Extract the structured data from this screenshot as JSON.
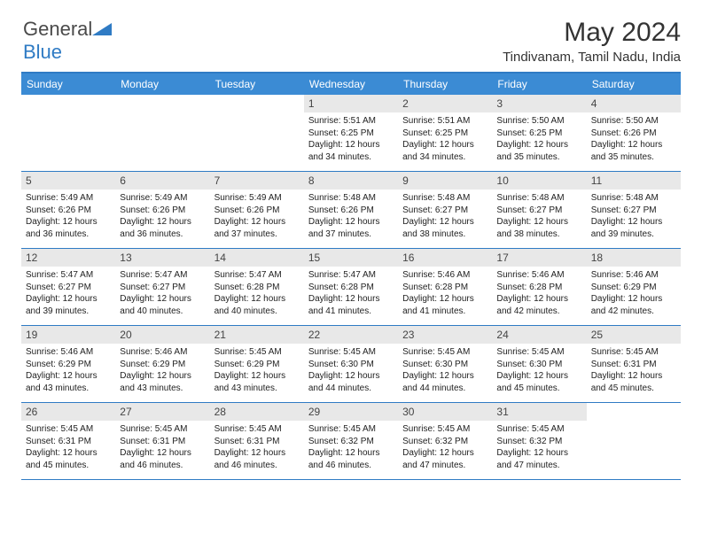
{
  "logo": {
    "text1": "General",
    "text2": "Blue"
  },
  "header": {
    "month_title": "May 2024",
    "location": "Tindivanam, Tamil Nadu, India"
  },
  "colors": {
    "header_bar": "#3b8bd4",
    "border": "#2f7bc4",
    "daynum_bg": "#e8e8e8",
    "text": "#222222"
  },
  "weekdays": [
    "Sunday",
    "Monday",
    "Tuesday",
    "Wednesday",
    "Thursday",
    "Friday",
    "Saturday"
  ],
  "weeks": [
    [
      null,
      null,
      null,
      {
        "n": "1",
        "sr": "5:51 AM",
        "ss": "6:25 PM",
        "dl": "12 hours and 34 minutes."
      },
      {
        "n": "2",
        "sr": "5:51 AM",
        "ss": "6:25 PM",
        "dl": "12 hours and 34 minutes."
      },
      {
        "n": "3",
        "sr": "5:50 AM",
        "ss": "6:25 PM",
        "dl": "12 hours and 35 minutes."
      },
      {
        "n": "4",
        "sr": "5:50 AM",
        "ss": "6:26 PM",
        "dl": "12 hours and 35 minutes."
      }
    ],
    [
      {
        "n": "5",
        "sr": "5:49 AM",
        "ss": "6:26 PM",
        "dl": "12 hours and 36 minutes."
      },
      {
        "n": "6",
        "sr": "5:49 AM",
        "ss": "6:26 PM",
        "dl": "12 hours and 36 minutes."
      },
      {
        "n": "7",
        "sr": "5:49 AM",
        "ss": "6:26 PM",
        "dl": "12 hours and 37 minutes."
      },
      {
        "n": "8",
        "sr": "5:48 AM",
        "ss": "6:26 PM",
        "dl": "12 hours and 37 minutes."
      },
      {
        "n": "9",
        "sr": "5:48 AM",
        "ss": "6:27 PM",
        "dl": "12 hours and 38 minutes."
      },
      {
        "n": "10",
        "sr": "5:48 AM",
        "ss": "6:27 PM",
        "dl": "12 hours and 38 minutes."
      },
      {
        "n": "11",
        "sr": "5:48 AM",
        "ss": "6:27 PM",
        "dl": "12 hours and 39 minutes."
      }
    ],
    [
      {
        "n": "12",
        "sr": "5:47 AM",
        "ss": "6:27 PM",
        "dl": "12 hours and 39 minutes."
      },
      {
        "n": "13",
        "sr": "5:47 AM",
        "ss": "6:27 PM",
        "dl": "12 hours and 40 minutes."
      },
      {
        "n": "14",
        "sr": "5:47 AM",
        "ss": "6:28 PM",
        "dl": "12 hours and 40 minutes."
      },
      {
        "n": "15",
        "sr": "5:47 AM",
        "ss": "6:28 PM",
        "dl": "12 hours and 41 minutes."
      },
      {
        "n": "16",
        "sr": "5:46 AM",
        "ss": "6:28 PM",
        "dl": "12 hours and 41 minutes."
      },
      {
        "n": "17",
        "sr": "5:46 AM",
        "ss": "6:28 PM",
        "dl": "12 hours and 42 minutes."
      },
      {
        "n": "18",
        "sr": "5:46 AM",
        "ss": "6:29 PM",
        "dl": "12 hours and 42 minutes."
      }
    ],
    [
      {
        "n": "19",
        "sr": "5:46 AM",
        "ss": "6:29 PM",
        "dl": "12 hours and 43 minutes."
      },
      {
        "n": "20",
        "sr": "5:46 AM",
        "ss": "6:29 PM",
        "dl": "12 hours and 43 minutes."
      },
      {
        "n": "21",
        "sr": "5:45 AM",
        "ss": "6:29 PM",
        "dl": "12 hours and 43 minutes."
      },
      {
        "n": "22",
        "sr": "5:45 AM",
        "ss": "6:30 PM",
        "dl": "12 hours and 44 minutes."
      },
      {
        "n": "23",
        "sr": "5:45 AM",
        "ss": "6:30 PM",
        "dl": "12 hours and 44 minutes."
      },
      {
        "n": "24",
        "sr": "5:45 AM",
        "ss": "6:30 PM",
        "dl": "12 hours and 45 minutes."
      },
      {
        "n": "25",
        "sr": "5:45 AM",
        "ss": "6:31 PM",
        "dl": "12 hours and 45 minutes."
      }
    ],
    [
      {
        "n": "26",
        "sr": "5:45 AM",
        "ss": "6:31 PM",
        "dl": "12 hours and 45 minutes."
      },
      {
        "n": "27",
        "sr": "5:45 AM",
        "ss": "6:31 PM",
        "dl": "12 hours and 46 minutes."
      },
      {
        "n": "28",
        "sr": "5:45 AM",
        "ss": "6:31 PM",
        "dl": "12 hours and 46 minutes."
      },
      {
        "n": "29",
        "sr": "5:45 AM",
        "ss": "6:32 PM",
        "dl": "12 hours and 46 minutes."
      },
      {
        "n": "30",
        "sr": "5:45 AM",
        "ss": "6:32 PM",
        "dl": "12 hours and 47 minutes."
      },
      {
        "n": "31",
        "sr": "5:45 AM",
        "ss": "6:32 PM",
        "dl": "12 hours and 47 minutes."
      },
      null
    ]
  ],
  "labels": {
    "sunrise": "Sunrise:",
    "sunset": "Sunset:",
    "daylight": "Daylight:"
  }
}
